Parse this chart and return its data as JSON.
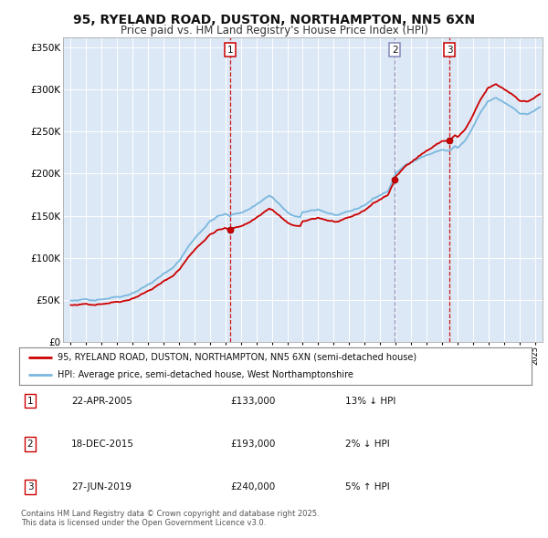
{
  "title": "95, RYELAND ROAD, DUSTON, NORTHAMPTON, NN5 6XN",
  "subtitle": "Price paid vs. HM Land Registry's House Price Index (HPI)",
  "title_fontsize": 10,
  "subtitle_fontsize": 8.5,
  "background_color": "#ffffff",
  "plot_bg_color": "#dce8f5",
  "grid_color": "#ffffff",
  "hpi_color": "#7ab8de",
  "price_color": "#cc0000",
  "vline_color_red": "#cc0000",
  "vline_color_blue": "#8888bb",
  "legend1_text": "95, RYELAND ROAD, DUSTON, NORTHAMPTON, NN5 6XN (semi-detached house)",
  "legend2_text": "HPI: Average price, semi-detached house, West Northamptonshire",
  "table_data": [
    {
      "num": "1",
      "date": "22-APR-2005",
      "price": "£133,000",
      "hpi": "13% ↓ HPI"
    },
    {
      "num": "2",
      "date": "18-DEC-2015",
      "price": "£193,000",
      "hpi": "2% ↓ HPI"
    },
    {
      "num": "3",
      "date": "27-JUN-2019",
      "price": "£240,000",
      "hpi": "5% ↑ HPI"
    }
  ],
  "footnote": "Contains HM Land Registry data © Crown copyright and database right 2025.\nThis data is licensed under the Open Government Licence v3.0.",
  "xmin": 1994.5,
  "xmax": 2025.5,
  "ymin": 0,
  "ymax": 362000,
  "yticks": [
    0,
    50000,
    100000,
    150000,
    200000,
    250000,
    300000,
    350000
  ],
  "ytick_labels": [
    "£0",
    "£50K",
    "£100K",
    "£150K",
    "£200K",
    "£250K",
    "£300K",
    "£350K"
  ],
  "t1_year": 2005.3,
  "t1_price": 133000,
  "t2_year": 2015.95,
  "t2_price": 193000,
  "t3_year": 2019.5,
  "t3_price": 240000
}
